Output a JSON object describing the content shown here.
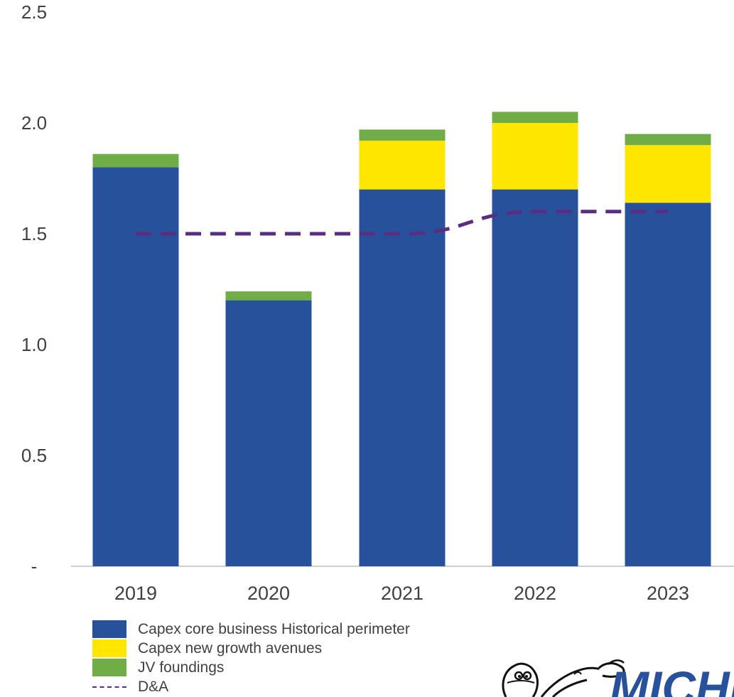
{
  "chart_data": {
    "type": "bar",
    "stacked": true,
    "categories": [
      "2019",
      "2020",
      "2021",
      "2022",
      "2023"
    ],
    "series": [
      {
        "name": "Capex core business Historical perimeter",
        "color": "#27519b",
        "values": [
          1.8,
          1.2,
          1.7,
          1.7,
          1.64
        ]
      },
      {
        "name": "Capex new growth avenues",
        "color": "#ffe600",
        "values": [
          0,
          0,
          0.22,
          0.3,
          0.26
        ]
      },
      {
        "name": "JV foundings",
        "color": "#70ad47",
        "values": [
          0.06,
          0.04,
          0.05,
          0.05,
          0.05
        ]
      }
    ],
    "line_series": {
      "name": "D&A",
      "color": "#5b2d82",
      "style": "dashed",
      "values": [
        1.5,
        1.5,
        1.5,
        1.6,
        1.6
      ]
    },
    "y_ticks": [
      "-",
      "0.5",
      "1.0",
      "1.5",
      "2.0",
      "2.5"
    ],
    "ylim": [
      0,
      2.5
    ],
    "title": "",
    "xlabel": "",
    "ylabel": "",
    "grid": false,
    "legend_position": "bottom-left"
  },
  "legend": {
    "items": [
      {
        "label": "Capex core business Historical perimeter",
        "color": "#27519b",
        "kind": "box"
      },
      {
        "label": "Capex new growth avenues",
        "color": "#ffe600",
        "kind": "box"
      },
      {
        "label": "JV foundings",
        "color": "#70ad47",
        "kind": "box"
      },
      {
        "label": "D&A",
        "color": "#5b2d82",
        "kind": "dashed-line"
      }
    ]
  },
  "logo": {
    "text": "MICHELIN",
    "color": "#27519b"
  }
}
